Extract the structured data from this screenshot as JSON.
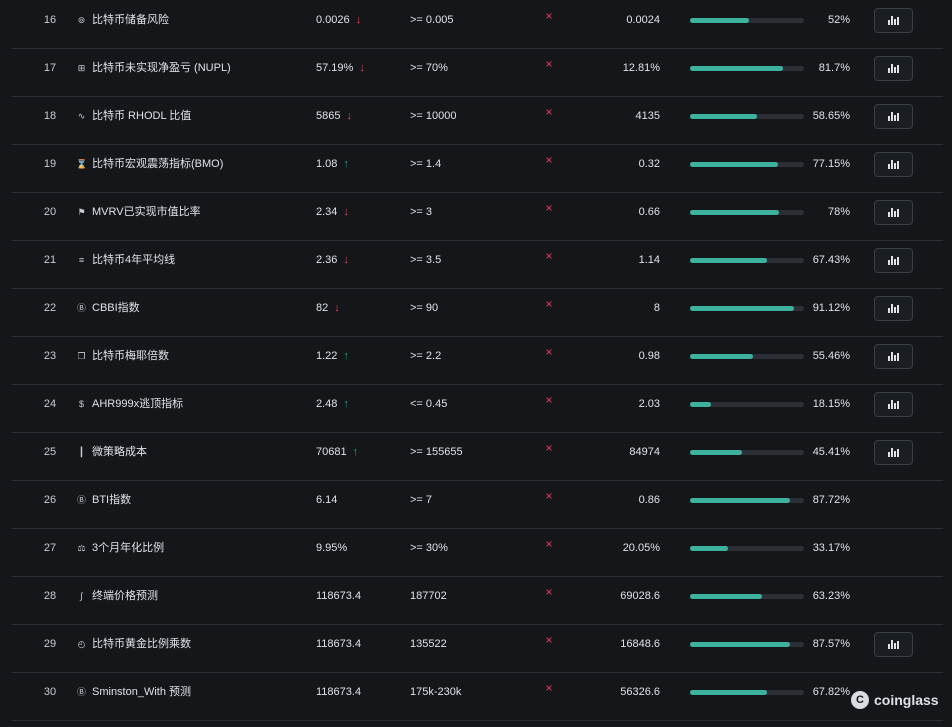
{
  "rows": [
    {
      "index": "16",
      "icon": "risk-icon",
      "name": "比特币储备风险",
      "value": "0.0026",
      "trend": "down",
      "target": "&gt;= 0.005",
      "current": "0.0024",
      "progress": 52,
      "percent": "52%",
      "chart_button": true
    },
    {
      "index": "17",
      "icon": "nupl-icon",
      "name": "比特币未实现净盈亏 (NUPL)",
      "value": "57.19%",
      "trend": "down",
      "target": "&gt;= 70%",
      "current": "12.81%",
      "progress": 81.7,
      "percent": "81.7%",
      "chart_button": true
    },
    {
      "index": "18",
      "icon": "wave-icon",
      "name": "比特币 RHODL 比值",
      "value": "5865",
      "trend": "down",
      "target": "&gt;= 10000",
      "current": "4135",
      "progress": 58.65,
      "percent": "58.65%",
      "chart_button": true
    },
    {
      "index": "19",
      "icon": "hourglass-icon",
      "name": "比特币宏观震荡指标(BMO)",
      "value": "1.08",
      "trend": "up",
      "target": "&gt;= 1.4",
      "current": "0.32",
      "progress": 77.15,
      "percent": "77.15%",
      "chart_button": true
    },
    {
      "index": "20",
      "icon": "flag-icon",
      "name": "MVRV已实现市值比率",
      "value": "2.34",
      "trend": "down",
      "target": "&gt;= 3",
      "current": "0.66",
      "progress": 78,
      "percent": "78%",
      "chart_button": true
    },
    {
      "index": "21",
      "icon": "lines-icon",
      "name": "比特币4年平均线",
      "value": "2.36",
      "trend": "down",
      "target": "&gt;= 3.5",
      "current": "1.14",
      "progress": 67.43,
      "percent": "67.43%",
      "chart_button": true
    },
    {
      "index": "22",
      "icon": "bitcoin-icon",
      "name": "CBBI指数",
      "value": "82",
      "trend": "down",
      "target": "&gt;= 90",
      "current": "8",
      "progress": 91.12,
      "percent": "91.12%",
      "chart_button": true
    },
    {
      "index": "23",
      "icon": "copy-icon",
      "name": "比特币梅耶倍数",
      "value": "1.22",
      "trend": "up",
      "target": "&gt;= 2.2",
      "current": "0.98",
      "progress": 55.46,
      "percent": "55.46%",
      "chart_button": true
    },
    {
      "index": "24",
      "icon": "dollar-icon",
      "name": "AHR999x逃顶指标",
      "value": "2.48",
      "trend": "up",
      "target": "&lt;= 0.45",
      "current": "2.03",
      "progress": 18.15,
      "percent": "18.15%",
      "chart_button": true
    },
    {
      "index": "25",
      "icon": "bar-chart-icon",
      "name": "微策略成本",
      "value": "70681",
      "trend": "up",
      "target": "&gt;= 155655",
      "current": "84974",
      "progress": 45.41,
      "percent": "45.41%",
      "chart_button": true
    },
    {
      "index": "26",
      "icon": "bitcoin-icon",
      "name": "BTI指数",
      "value": "6.14",
      "trend": "",
      "target": "&gt;= 7",
      "current": "0.86",
      "progress": 87.72,
      "percent": "87.72%",
      "chart_button": false
    },
    {
      "index": "27",
      "icon": "scale-icon",
      "name": "3个月年化比例",
      "value": "9.95%",
      "trend": "",
      "target": "&gt;= 30%",
      "current": "20.05%",
      "progress": 33.17,
      "percent": "33.17%",
      "chart_button": false
    },
    {
      "index": "28",
      "icon": "curve-icon",
      "name": "终端价格预测",
      "value": "118673.4",
      "trend": "",
      "target": "187702",
      "current": "69028.6",
      "progress": 63.23,
      "percent": "63.23%",
      "chart_button": false
    },
    {
      "index": "29",
      "icon": "gold-icon",
      "name": "比特币黄金比例乘数",
      "value": "118673.4",
      "trend": "",
      "target": "135522",
      "current": "16848.6",
      "progress": 87.57,
      "percent": "87.57%",
      "chart_button": true
    },
    {
      "index": "30",
      "icon": "bitcoin-icon",
      "name": "Sminston_With 预测",
      "value": "118673.4",
      "trend": "",
      "target": "175k-230k",
      "current": "56326.6",
      "progress": 67.82,
      "percent": "67.82%",
      "chart_button": false
    }
  ],
  "not_triggered_mark": "×",
  "brand": {
    "name": "coinglass",
    "mark": "C"
  },
  "colors": {
    "down": "#e6434e",
    "up": "#1fa77b",
    "bar": "#3db39e"
  }
}
